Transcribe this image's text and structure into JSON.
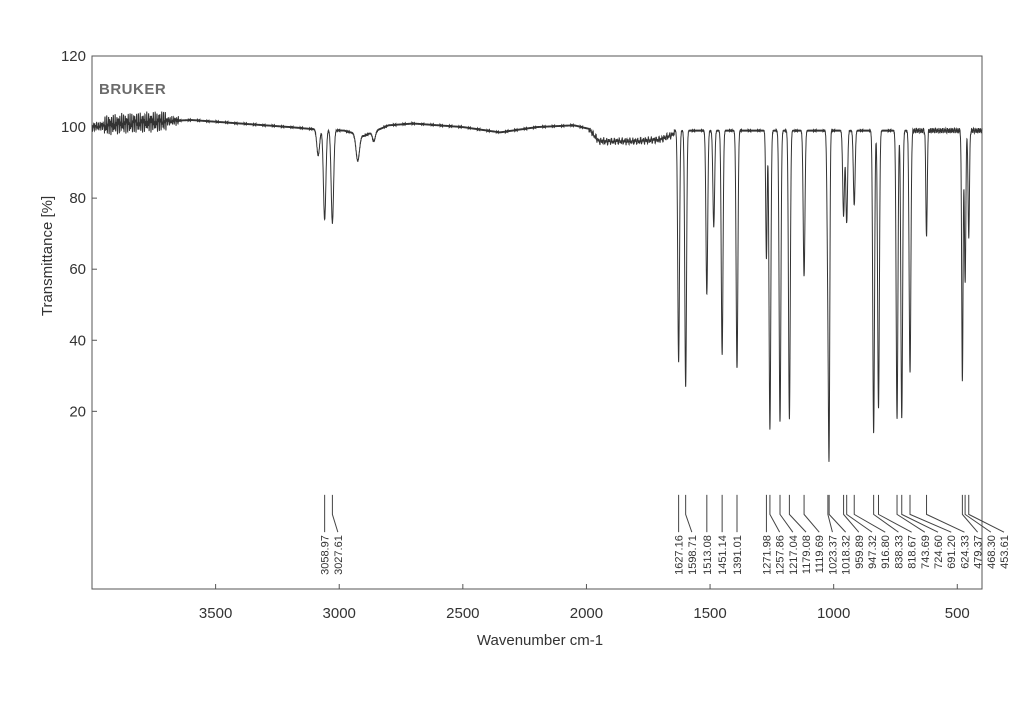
{
  "chart_data": {
    "type": "line",
    "brand": "BRUKER",
    "xlabel": "Wavenumber cm-1",
    "ylabel": "Transmittance [%]",
    "xlim": [
      4000,
      400
    ],
    "ylim": [
      -30,
      120
    ],
    "x_ticks": [
      3500,
      3000,
      2500,
      2000,
      1500,
      1000,
      500
    ],
    "y_ticks": [
      20,
      40,
      60,
      80,
      100,
      120
    ],
    "grid": false,
    "baseline": [
      [
        4000,
        100
      ],
      [
        3880,
        101
      ],
      [
        3600,
        102
      ],
      [
        3400,
        101
      ],
      [
        3200,
        100
      ],
      [
        3120,
        99.5
      ],
      [
        2980,
        99
      ],
      [
        2900,
        97.5
      ],
      [
        2800,
        100.5
      ],
      [
        2700,
        101
      ],
      [
        2500,
        100
      ],
      [
        2350,
        98.5
      ],
      [
        2200,
        100
      ],
      [
        2050,
        100.5
      ],
      [
        1990,
        99.5
      ],
      [
        1950,
        96
      ],
      [
        1800,
        96
      ],
      [
        1700,
        96.5
      ],
      [
        1645,
        98
      ]
    ],
    "features": [
      {
        "x": 3085,
        "y": 92,
        "w": 8
      },
      {
        "x": 3058.97,
        "y": 74,
        "w": 7
      },
      {
        "x": 3027.61,
        "y": 73,
        "w": 7
      },
      {
        "x": 2925,
        "y": 90.5,
        "w": 10
      },
      {
        "x": 2860,
        "y": 96,
        "w": 8
      },
      {
        "x": 1627.16,
        "y": 34,
        "w": 5
      },
      {
        "x": 1598.71,
        "y": 27,
        "w": 5
      },
      {
        "x": 1513.08,
        "y": 53,
        "w": 5
      },
      {
        "x": 1485,
        "y": 72,
        "w": 5
      },
      {
        "x": 1451.14,
        "y": 36,
        "w": 5
      },
      {
        "x": 1391.01,
        "y": 32,
        "w": 5
      },
      {
        "x": 1271.98,
        "y": 63,
        "w": 4
      },
      {
        "x": 1257.86,
        "y": 15,
        "w": 5
      },
      {
        "x": 1217.04,
        "y": 17,
        "w": 5
      },
      {
        "x": 1179.08,
        "y": 18,
        "w": 5
      },
      {
        "x": 1119.69,
        "y": 58,
        "w": 5
      },
      {
        "x": 1023.37,
        "y": 60,
        "w": 5
      },
      {
        "x": 1018.32,
        "y": 22,
        "w": 4
      },
      {
        "x": 959.89,
        "y": 75,
        "w": 5
      },
      {
        "x": 947.32,
        "y": 73,
        "w": 5
      },
      {
        "x": 916.8,
        "y": 78,
        "w": 5
      },
      {
        "x": 838.33,
        "y": 14,
        "w": 5
      },
      {
        "x": 818.67,
        "y": 21,
        "w": 5
      },
      {
        "x": 743.69,
        "y": 18,
        "w": 5
      },
      {
        "x": 724.6,
        "y": 18,
        "w": 5
      },
      {
        "x": 691.2,
        "y": 31,
        "w": 5
      },
      {
        "x": 624.33,
        "y": 69,
        "w": 4
      },
      {
        "x": 479.37,
        "y": 29,
        "w": 4
      },
      {
        "x": 468.3,
        "y": 56,
        "w": 4
      },
      {
        "x": 453.61,
        "y": 69,
        "w": 4
      }
    ],
    "peaks": [
      "3058.97",
      "3027.61",
      "1627.16",
      "1598.71",
      "1513.08",
      "1451.14",
      "1391.01",
      "1271.98",
      "1257.86",
      "1217.04",
      "1179.08",
      "1119.69",
      "1023.37",
      "1018.32",
      "959.89",
      "947.32",
      "916.80",
      "838.33",
      "818.67",
      "743.69",
      "724.60",
      "691.20",
      "624.33",
      "479.37",
      "468.30",
      "453.61"
    ]
  }
}
